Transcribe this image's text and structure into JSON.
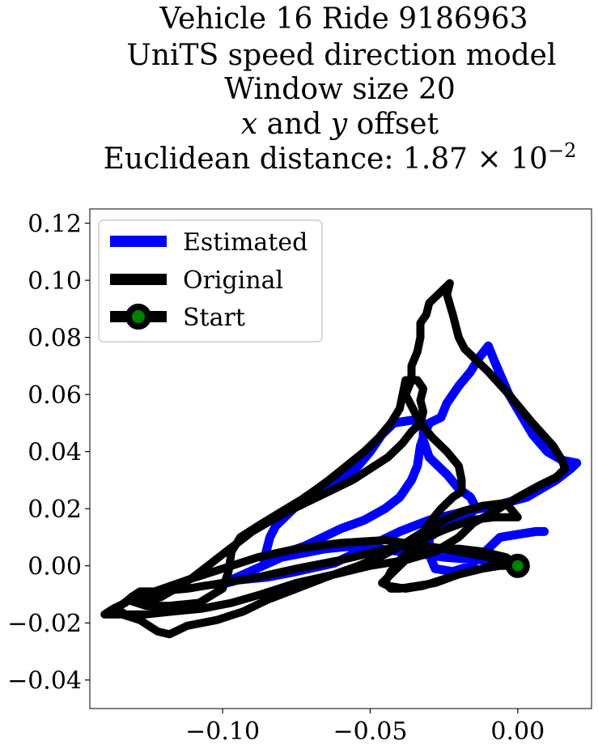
{
  "chart_data": {
    "type": "line",
    "title_lines": [
      "Vehicle 16 Ride 9186963",
      "UniTS speed direction model",
      "Window size 20",
      "x and y offset",
      "Euclidean distance: 1.87 × 10^-2"
    ],
    "xlim": [
      -0.145,
      0.025
    ],
    "ylim": [
      -0.05,
      0.125
    ],
    "x_ticks": [
      -0.1,
      -0.05,
      0.0
    ],
    "x_tick_labels": [
      "−0.10",
      "−0.05",
      "0.00"
    ],
    "y_ticks": [
      -0.04,
      -0.02,
      0.0,
      0.02,
      0.04,
      0.06,
      0.08,
      0.1,
      0.12
    ],
    "y_tick_labels": [
      "−0.04",
      "−0.02",
      "0.00",
      "0.02",
      "0.04",
      "0.06",
      "0.08",
      "0.10",
      "0.12"
    ],
    "grid": false,
    "legend_position": "top-left",
    "legend": [
      "Estimated",
      "Original",
      "Start"
    ],
    "colors": {
      "estimated": "#0000ff",
      "original": "#000000",
      "start_fill": "#008000",
      "start_edge": "#000000"
    },
    "series": [
      {
        "name": "Estimated",
        "points": [
          [
            0.0,
            0.0
          ],
          [
            -0.012,
            0.002
          ],
          [
            -0.025,
            0.003
          ],
          [
            -0.032,
            0.004
          ],
          [
            -0.04,
            0.005
          ],
          [
            -0.055,
            0.007
          ],
          [
            -0.065,
            0.006
          ],
          [
            -0.08,
            0.003
          ],
          [
            -0.095,
            -0.004
          ],
          [
            -0.102,
            -0.007
          ],
          [
            -0.095,
            -0.005
          ],
          [
            -0.085,
            -0.004
          ],
          [
            -0.075,
            -0.002
          ],
          [
            -0.062,
            0.001
          ],
          [
            -0.05,
            0.007
          ],
          [
            -0.04,
            0.012
          ],
          [
            -0.03,
            0.016
          ],
          [
            -0.018,
            0.019
          ],
          [
            -0.008,
            0.021
          ],
          [
            0.003,
            0.024
          ],
          [
            0.013,
            0.03
          ],
          [
            0.018,
            0.034
          ],
          [
            0.02,
            0.036
          ],
          [
            0.015,
            0.037
          ],
          [
            0.01,
            0.04
          ],
          [
            0.005,
            0.046
          ],
          [
            -0.003,
            0.06
          ],
          [
            -0.008,
            0.072
          ],
          [
            -0.01,
            0.077
          ],
          [
            -0.013,
            0.073
          ],
          [
            -0.016,
            0.068
          ],
          [
            -0.02,
            0.063
          ],
          [
            -0.024,
            0.057
          ],
          [
            -0.026,
            0.052
          ],
          [
            -0.03,
            0.05
          ],
          [
            -0.032,
            0.045
          ],
          [
            -0.033,
            0.042
          ],
          [
            -0.034,
            0.035
          ],
          [
            -0.036,
            0.03
          ],
          [
            -0.04,
            0.024
          ],
          [
            -0.045,
            0.02
          ],
          [
            -0.052,
            0.016
          ],
          [
            -0.06,
            0.013
          ],
          [
            -0.066,
            0.01
          ],
          [
            -0.072,
            0.007
          ],
          [
            -0.08,
            0.004
          ],
          [
            -0.086,
            0.002
          ],
          [
            -0.084,
            0.01
          ],
          [
            -0.082,
            0.014
          ],
          [
            -0.078,
            0.018
          ],
          [
            -0.072,
            0.024
          ],
          [
            -0.066,
            0.028
          ],
          [
            -0.06,
            0.03
          ],
          [
            -0.054,
            0.035
          ],
          [
            -0.05,
            0.04
          ],
          [
            -0.046,
            0.046
          ],
          [
            -0.042,
            0.05
          ],
          [
            -0.036,
            0.051
          ],
          [
            -0.032,
            0.05
          ],
          [
            -0.032,
            0.044
          ],
          [
            -0.03,
            0.038
          ],
          [
            -0.028,
            0.036
          ],
          [
            -0.024,
            0.032
          ],
          [
            -0.02,
            0.027
          ],
          [
            -0.016,
            0.024
          ],
          [
            -0.014,
            0.02
          ],
          [
            -0.018,
            0.017
          ],
          [
            -0.024,
            0.014
          ],
          [
            -0.03,
            0.01
          ],
          [
            -0.03,
            0.004
          ],
          [
            -0.028,
            -0.001
          ],
          [
            -0.022,
            -0.002
          ],
          [
            -0.016,
            0.0
          ],
          [
            -0.012,
            0.004
          ],
          [
            -0.006,
            0.01
          ],
          [
            0.0,
            0.011
          ],
          [
            0.006,
            0.012
          ],
          [
            0.009,
            0.012
          ]
        ]
      },
      {
        "name": "Original",
        "points": [
          [
            0.0,
            0.0
          ],
          [
            -0.004,
            0.003
          ],
          [
            -0.012,
            0.005
          ],
          [
            -0.02,
            0.006
          ],
          [
            -0.03,
            0.006
          ],
          [
            -0.036,
            0.004
          ],
          [
            -0.04,
            0.0
          ],
          [
            -0.044,
            -0.004
          ],
          [
            -0.046,
            -0.006
          ],
          [
            -0.044,
            -0.007
          ],
          [
            -0.038,
            -0.008
          ],
          [
            -0.032,
            -0.007
          ],
          [
            -0.026,
            -0.005
          ],
          [
            -0.02,
            -0.003
          ],
          [
            -0.012,
            -0.001
          ],
          [
            -0.006,
            0.001
          ],
          [
            0.0,
            0.0
          ],
          [
            -0.01,
            0.003
          ],
          [
            -0.025,
            0.006
          ],
          [
            -0.045,
            0.009
          ],
          [
            -0.06,
            0.008
          ],
          [
            -0.075,
            0.006
          ],
          [
            -0.088,
            0.003
          ],
          [
            -0.1,
            -0.001
          ],
          [
            -0.112,
            -0.005
          ],
          [
            -0.123,
            -0.009
          ],
          [
            -0.132,
            -0.012
          ],
          [
            -0.136,
            -0.015
          ],
          [
            -0.133,
            -0.017
          ],
          [
            -0.126,
            -0.017
          ],
          [
            -0.117,
            -0.016
          ],
          [
            -0.107,
            -0.015
          ],
          [
            -0.097,
            -0.013
          ],
          [
            -0.087,
            -0.01
          ],
          [
            -0.075,
            -0.006
          ],
          [
            -0.062,
            -0.003
          ],
          [
            -0.05,
            0.0
          ],
          [
            -0.038,
            0.002
          ],
          [
            -0.028,
            0.005
          ],
          [
            -0.02,
            0.01
          ],
          [
            -0.015,
            0.015
          ],
          [
            -0.008,
            0.019
          ],
          [
            0.0,
            0.024
          ],
          [
            0.007,
            0.028
          ],
          [
            0.013,
            0.031
          ],
          [
            0.016,
            0.034
          ],
          [
            0.015,
            0.037
          ],
          [
            0.012,
            0.042
          ],
          [
            0.005,
            0.05
          ],
          [
            -0.003,
            0.06
          ],
          [
            -0.01,
            0.068
          ],
          [
            -0.015,
            0.073
          ],
          [
            -0.018,
            0.076
          ],
          [
            -0.02,
            0.08
          ],
          [
            -0.022,
            0.088
          ],
          [
            -0.024,
            0.095
          ],
          [
            -0.023,
            0.099
          ],
          [
            -0.026,
            0.096
          ],
          [
            -0.03,
            0.092
          ],
          [
            -0.031,
            0.088
          ],
          [
            -0.033,
            0.085
          ],
          [
            -0.033,
            0.08
          ],
          [
            -0.034,
            0.075
          ],
          [
            -0.036,
            0.07
          ],
          [
            -0.036,
            0.065
          ],
          [
            -0.038,
            0.06
          ],
          [
            -0.036,
            0.056
          ],
          [
            -0.033,
            0.05
          ],
          [
            -0.029,
            0.045
          ],
          [
            -0.024,
            0.04
          ],
          [
            -0.02,
            0.035
          ],
          [
            -0.019,
            0.03
          ],
          [
            -0.019,
            0.026
          ],
          [
            -0.022,
            0.024
          ],
          [
            -0.026,
            0.02
          ],
          [
            -0.03,
            0.015
          ],
          [
            -0.033,
            0.01
          ],
          [
            -0.034,
            0.008
          ],
          [
            -0.048,
            0.005
          ],
          [
            -0.06,
            0.002
          ],
          [
            -0.075,
            -0.001
          ],
          [
            -0.088,
            -0.004
          ],
          [
            -0.1,
            -0.006
          ],
          [
            -0.112,
            -0.008
          ],
          [
            -0.122,
            -0.009
          ],
          [
            -0.128,
            -0.009
          ],
          [
            -0.131,
            -0.011
          ],
          [
            -0.133,
            -0.013
          ],
          [
            -0.137,
            -0.015
          ],
          [
            -0.14,
            -0.017
          ],
          [
            -0.134,
            -0.017
          ],
          [
            -0.128,
            -0.019
          ],
          [
            -0.125,
            -0.021
          ],
          [
            -0.122,
            -0.023
          ],
          [
            -0.118,
            -0.024
          ],
          [
            -0.112,
            -0.021
          ],
          [
            -0.102,
            -0.019
          ],
          [
            -0.093,
            -0.016
          ],
          [
            -0.085,
            -0.012
          ],
          [
            -0.075,
            -0.008
          ],
          [
            -0.065,
            -0.004
          ],
          [
            -0.054,
            0.0
          ],
          [
            -0.045,
            0.004
          ],
          [
            -0.038,
            0.008
          ],
          [
            -0.032,
            0.012
          ],
          [
            -0.025,
            0.016
          ],
          [
            -0.019,
            0.019
          ],
          [
            -0.012,
            0.021
          ],
          [
            -0.004,
            0.022
          ]
        ]
      },
      {
        "name": "Original",
        "points": [
          [
            -0.132,
            -0.012
          ],
          [
            -0.126,
            -0.014
          ],
          [
            -0.118,
            -0.014
          ],
          [
            -0.108,
            -0.013
          ],
          [
            -0.1,
            -0.008
          ],
          [
            -0.098,
            -0.002
          ],
          [
            -0.097,
            0.005
          ],
          [
            -0.094,
            0.01
          ],
          [
            -0.088,
            0.014
          ],
          [
            -0.08,
            0.019
          ],
          [
            -0.072,
            0.024
          ],
          [
            -0.064,
            0.03
          ],
          [
            -0.058,
            0.035
          ],
          [
            -0.052,
            0.04
          ],
          [
            -0.047,
            0.045
          ],
          [
            -0.043,
            0.05
          ],
          [
            -0.04,
            0.055
          ],
          [
            -0.039,
            0.06
          ],
          [
            -0.038,
            0.065
          ],
          [
            -0.034,
            0.065
          ],
          [
            -0.032,
            0.062
          ],
          [
            -0.033,
            0.058
          ],
          [
            -0.032,
            0.054
          ],
          [
            -0.033,
            0.05
          ],
          [
            -0.036,
            0.047
          ],
          [
            -0.039,
            0.043
          ],
          [
            -0.044,
            0.038
          ],
          [
            -0.05,
            0.034
          ],
          [
            -0.056,
            0.03
          ],
          [
            -0.062,
            0.027
          ],
          [
            -0.068,
            0.024
          ],
          [
            -0.074,
            0.021
          ],
          [
            -0.08,
            0.018
          ],
          [
            -0.085,
            0.015
          ],
          [
            -0.09,
            0.012
          ],
          [
            -0.095,
            0.008
          ],
          [
            -0.1,
            0.004
          ],
          [
            -0.105,
            0.0
          ],
          [
            -0.11,
            -0.004
          ],
          [
            -0.116,
            -0.008
          ],
          [
            -0.121,
            -0.011
          ],
          [
            -0.126,
            -0.012
          ],
          [
            -0.132,
            -0.012
          ]
        ]
      },
      {
        "name": "Original",
        "points": [
          [
            -0.004,
            0.022
          ],
          [
            0.0,
            0.017
          ],
          [
            -0.008,
            0.017
          ],
          [
            -0.016,
            0.016
          ],
          [
            -0.024,
            0.013
          ],
          [
            -0.031,
            0.01
          ],
          [
            -0.036,
            0.006
          ],
          [
            -0.04,
            0.002
          ],
          [
            -0.043,
            -0.002
          ],
          [
            -0.045,
            -0.006
          ],
          [
            -0.043,
            -0.008
          ],
          [
            -0.04,
            -0.008
          ],
          [
            -0.034,
            -0.007
          ],
          [
            -0.028,
            -0.006
          ],
          [
            -0.02,
            -0.003
          ],
          [
            -0.012,
            -0.001
          ],
          [
            -0.006,
            0.0
          ],
          [
            0.0,
            0.0
          ]
        ]
      }
    ],
    "start_point": [
      0.0,
      0.0
    ]
  }
}
